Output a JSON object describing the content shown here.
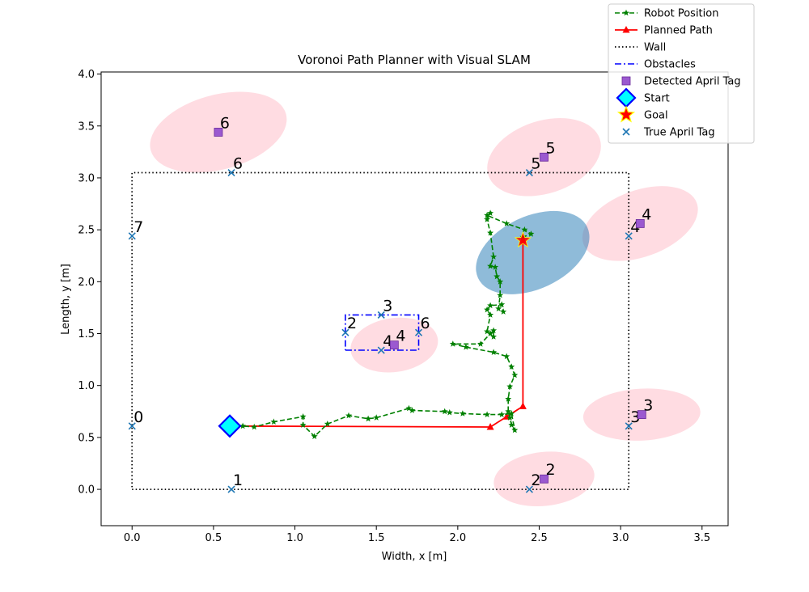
{
  "chart_data": {
    "type": "scatter",
    "title": "Voronoi Path Planner with Visual SLAM",
    "xlabel": "Width, x [m]",
    "ylabel": "Length, y [m]",
    "xlim": [
      -0.19,
      3.66
    ],
    "ylim": [
      -0.35,
      4.02
    ],
    "x_ticks": [
      0.0,
      0.5,
      1.0,
      1.5,
      2.0,
      2.5,
      3.0,
      3.5
    ],
    "x_tick_labels": [
      "0.0",
      "0.5",
      "1.0",
      "1.5",
      "2.0",
      "2.5",
      "3.0",
      "3.5"
    ],
    "y_ticks": [
      0.0,
      0.5,
      1.0,
      1.5,
      2.0,
      2.5,
      3.0,
      3.5,
      4.0
    ],
    "y_tick_labels": [
      "0.0",
      "0.5",
      "1.0",
      "1.5",
      "2.0",
      "2.5",
      "3.0",
      "3.5",
      "4.0"
    ],
    "grid": false,
    "legend_position": "top-right",
    "legend": [
      {
        "label": "Robot Position",
        "key": "robot"
      },
      {
        "label": "Planned Path",
        "key": "path"
      },
      {
        "label": "Wall",
        "key": "wall"
      },
      {
        "label": "Obstacles",
        "key": "obstacles"
      },
      {
        "label": "Detected April Tag",
        "key": "detected"
      },
      {
        "label": "Start",
        "key": "start"
      },
      {
        "label": "Goal",
        "key": "goal"
      },
      {
        "label": "True April Tag",
        "key": "true_tag"
      }
    ],
    "colors": {
      "robot": "#008000",
      "path": "#ff0000",
      "wall": "#000000",
      "obstacles": "#0000ff",
      "detected_fill": "#9b59d0",
      "detected_edge": "#6a2a9a",
      "start_fill": "#00ffff",
      "start_edge": "#0000ff",
      "goal_fill": "#ff0000",
      "goal_edge": "#ffff00",
      "true_tag": "#1f77b4",
      "tag_ellipse": "#ffc0cb",
      "robot_ellipse": "#1f77b4"
    },
    "series": {
      "robot_position": [
        [
          0.6,
          0.61
        ],
        [
          0.68,
          0.61
        ],
        [
          0.75,
          0.6
        ],
        [
          0.87,
          0.65
        ],
        [
          1.05,
          0.7
        ],
        [
          1.05,
          0.62
        ],
        [
          1.12,
          0.51
        ],
        [
          1.2,
          0.63
        ],
        [
          1.33,
          0.71
        ],
        [
          1.45,
          0.68
        ],
        [
          1.5,
          0.69
        ],
        [
          1.7,
          0.78
        ],
        [
          1.72,
          0.76
        ],
        [
          1.92,
          0.75
        ],
        [
          1.95,
          0.74
        ],
        [
          2.03,
          0.73
        ],
        [
          2.18,
          0.72
        ],
        [
          2.27,
          0.72
        ],
        [
          2.33,
          0.73
        ],
        [
          2.35,
          0.57
        ],
        [
          2.33,
          0.62
        ],
        [
          2.32,
          0.69
        ],
        [
          2.31,
          0.75
        ],
        [
          2.31,
          0.87
        ],
        [
          2.32,
          0.99
        ],
        [
          2.35,
          1.1
        ],
        [
          2.33,
          1.18
        ],
        [
          2.3,
          1.28
        ],
        [
          2.22,
          1.32
        ],
        [
          2.05,
          1.37
        ],
        [
          1.97,
          1.4
        ],
        [
          2.14,
          1.4
        ],
        [
          2.2,
          1.5
        ],
        [
          2.22,
          1.53
        ],
        [
          2.22,
          1.47
        ],
        [
          2.18,
          1.52
        ],
        [
          2.2,
          1.68
        ],
        [
          2.18,
          1.73
        ],
        [
          2.2,
          1.77
        ],
        [
          2.27,
          1.78
        ],
        [
          2.28,
          1.71
        ],
        [
          2.25,
          1.74
        ],
        [
          2.26,
          1.87
        ],
        [
          2.26,
          2.0
        ],
        [
          2.24,
          2.05
        ],
        [
          2.23,
          2.14
        ],
        [
          2.2,
          2.15
        ],
        [
          2.22,
          2.24
        ],
        [
          2.2,
          2.47
        ],
        [
          2.18,
          2.6
        ],
        [
          2.2,
          2.66
        ],
        [
          2.18,
          2.64
        ],
        [
          2.3,
          2.56
        ],
        [
          2.41,
          2.5
        ],
        [
          2.45,
          2.46
        ],
        [
          2.4,
          2.43
        ]
      ],
      "planned_path": [
        [
          0.6,
          0.61
        ],
        [
          2.2,
          0.6
        ],
        [
          2.3,
          0.7
        ],
        [
          2.4,
          0.8
        ],
        [
          2.4,
          2.4
        ]
      ],
      "wall": [
        [
          0.0,
          0.0
        ],
        [
          3.05,
          0.0
        ],
        [
          3.05,
          3.05
        ],
        [
          0.0,
          3.05
        ],
        [
          0.0,
          0.0
        ]
      ],
      "obstacle": [
        [
          1.31,
          1.34
        ],
        [
          1.76,
          1.34
        ],
        [
          1.76,
          1.68
        ],
        [
          1.31,
          1.68
        ],
        [
          1.31,
          1.34
        ]
      ],
      "start": [
        0.6,
        0.61
      ],
      "goal": [
        2.4,
        2.4
      ],
      "true_tags": [
        {
          "x": 0.0,
          "y": 0.61,
          "id": "0"
        },
        {
          "x": 0.61,
          "y": 0.0,
          "id": "1"
        },
        {
          "x": 2.44,
          "y": 0.0,
          "id": "2"
        },
        {
          "x": 3.05,
          "y": 0.61,
          "id": "3"
        },
        {
          "x": 3.05,
          "y": 2.44,
          "id": "4"
        },
        {
          "x": 2.44,
          "y": 3.05,
          "id": "5"
        },
        {
          "x": 0.61,
          "y": 3.05,
          "id": "6"
        },
        {
          "x": 0.0,
          "y": 2.44,
          "id": "7"
        },
        {
          "x": 1.31,
          "y": 1.51,
          "id": "2"
        },
        {
          "x": 1.53,
          "y": 1.68,
          "id": "3"
        },
        {
          "x": 1.53,
          "y": 1.34,
          "id": "4"
        },
        {
          "x": 1.76,
          "y": 1.51,
          "id": "6"
        }
      ],
      "detected_tags": [
        {
          "x": 0.53,
          "y": 3.44,
          "id": "6",
          "ellipse": {
            "rx": 0.43,
            "ry": 0.36,
            "angle": -15
          }
        },
        {
          "x": 2.53,
          "y": 3.2,
          "id": "5",
          "ellipse": {
            "rx": 0.36,
            "ry": 0.35,
            "angle": -18
          }
        },
        {
          "x": 3.12,
          "y": 2.56,
          "id": "4",
          "ellipse": {
            "rx": 0.37,
            "ry": 0.32,
            "angle": -20
          }
        },
        {
          "x": 1.61,
          "y": 1.39,
          "id": "4",
          "ellipse": {
            "rx": 0.27,
            "ry": 0.26,
            "angle": -8
          }
        },
        {
          "x": 3.13,
          "y": 0.72,
          "id": "3",
          "ellipse": {
            "rx": 0.36,
            "ry": 0.25,
            "angle": -3
          }
        },
        {
          "x": 2.53,
          "y": 0.1,
          "id": "2",
          "ellipse": {
            "rx": 0.31,
            "ry": 0.26,
            "angle": -6
          }
        }
      ],
      "robot_uncertainty": {
        "x": 2.46,
        "y": 2.28,
        "rx": 0.37,
        "ry": 0.35,
        "angle": -25
      }
    }
  }
}
